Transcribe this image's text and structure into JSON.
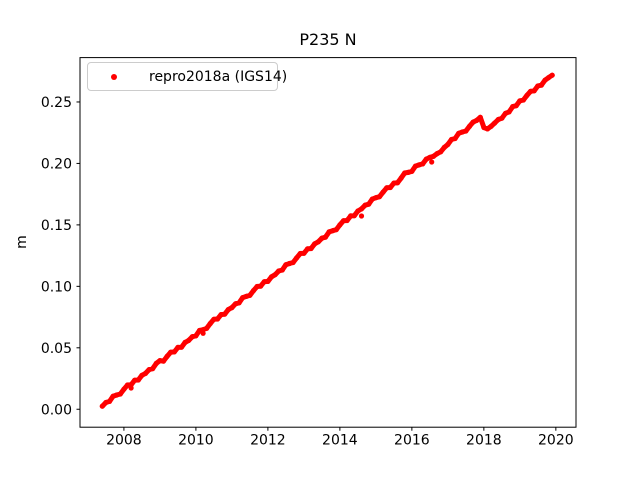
{
  "chart_data": {
    "type": "scatter",
    "title": "P235 N",
    "xlabel": "",
    "ylabel": "m",
    "grid": false,
    "legend": {
      "position": "upper left",
      "entries": [
        {
          "label": "repro2018a (IGS14)",
          "color": "#ff0000",
          "marker": "dot"
        }
      ]
    },
    "xlim": [
      2006.78,
      2020.56
    ],
    "ylim": [
      -0.0146,
      0.2861
    ],
    "xticks": {
      "values": [
        2008,
        2010,
        2012,
        2014,
        2016,
        2018,
        2020
      ],
      "labels": [
        "2008",
        "2010",
        "2012",
        "2014",
        "2016",
        "2018",
        "2020"
      ]
    },
    "yticks": {
      "values": [
        0.0,
        0.05,
        0.1,
        0.15,
        0.2,
        0.25
      ],
      "labels": [
        "0.00",
        "0.05",
        "0.10",
        "0.15",
        "0.20",
        "0.25"
      ]
    },
    "series": [
      {
        "name": "repro2018a (IGS14)",
        "color": "#ff0000",
        "marker": "dot",
        "marker_size_px": 5,
        "points": [
          [
            2007.4,
            0.0025
          ],
          [
            2007.5,
            0.0055
          ],
          [
            2007.6,
            0.0064
          ],
          [
            2007.7,
            0.0106
          ],
          [
            2007.8,
            0.0116
          ],
          [
            2007.9,
            0.0124
          ],
          [
            2008.0,
            0.0163
          ],
          [
            2008.1,
            0.0197
          ],
          [
            2008.2,
            0.0199
          ],
          [
            2008.3,
            0.0236
          ],
          [
            2008.4,
            0.0238
          ],
          [
            2008.5,
            0.0276
          ],
          [
            2008.6,
            0.0292
          ],
          [
            2008.7,
            0.0323
          ],
          [
            2008.8,
            0.0331
          ],
          [
            2008.9,
            0.0373
          ],
          [
            2009.0,
            0.0396
          ],
          [
            2009.1,
            0.0392
          ],
          [
            2009.2,
            0.043
          ],
          [
            2009.3,
            0.0464
          ],
          [
            2009.4,
            0.0467
          ],
          [
            2009.5,
            0.0503
          ],
          [
            2009.6,
            0.0505
          ],
          [
            2009.7,
            0.0544
          ],
          [
            2009.8,
            0.056
          ],
          [
            2009.9,
            0.059
          ],
          [
            2010.0,
            0.0598
          ],
          [
            2010.1,
            0.0641
          ],
          [
            2010.2,
            0.0647
          ],
          [
            2010.3,
            0.0659
          ],
          [
            2010.4,
            0.0698
          ],
          [
            2010.5,
            0.0732
          ],
          [
            2010.6,
            0.0734
          ],
          [
            2010.7,
            0.077
          ],
          [
            2010.8,
            0.0773
          ],
          [
            2010.9,
            0.0811
          ],
          [
            2011.0,
            0.0827
          ],
          [
            2011.1,
            0.0858
          ],
          [
            2011.2,
            0.0866
          ],
          [
            2011.3,
            0.0908
          ],
          [
            2011.4,
            0.0918
          ],
          [
            2011.5,
            0.0927
          ],
          [
            2011.6,
            0.0965
          ],
          [
            2011.7,
            0.0999
          ],
          [
            2011.8,
            0.1002
          ],
          [
            2011.9,
            0.1038
          ],
          [
            2012.0,
            0.104
          ],
          [
            2012.1,
            0.1078
          ],
          [
            2012.2,
            0.1095
          ],
          [
            2012.3,
            0.1125
          ],
          [
            2012.4,
            0.1133
          ],
          [
            2012.5,
            0.1176
          ],
          [
            2012.6,
            0.1186
          ],
          [
            2012.7,
            0.1194
          ],
          [
            2012.8,
            0.1232
          ],
          [
            2012.9,
            0.1267
          ],
          [
            2013.0,
            0.1269
          ],
          [
            2013.1,
            0.1305
          ],
          [
            2013.2,
            0.1308
          ],
          [
            2013.3,
            0.1346
          ],
          [
            2013.4,
            0.1362
          ],
          [
            2013.5,
            0.1392
          ],
          [
            2013.6,
            0.1401
          ],
          [
            2013.7,
            0.1443
          ],
          [
            2013.8,
            0.1453
          ],
          [
            2013.9,
            0.1462
          ],
          [
            2014.0,
            0.15
          ],
          [
            2014.1,
            0.1534
          ],
          [
            2014.2,
            0.1536
          ],
          [
            2014.3,
            0.1573
          ],
          [
            2014.4,
            0.1575
          ],
          [
            2014.5,
            0.1613
          ],
          [
            2014.6,
            0.163
          ],
          [
            2014.7,
            0.166
          ],
          [
            2014.8,
            0.1668
          ],
          [
            2014.9,
            0.171
          ],
          [
            2015.0,
            0.1721
          ],
          [
            2015.1,
            0.1729
          ],
          [
            2015.2,
            0.1767
          ],
          [
            2015.3,
            0.1802
          ],
          [
            2015.4,
            0.1804
          ],
          [
            2015.5,
            0.184
          ],
          [
            2015.6,
            0.1842
          ],
          [
            2015.7,
            0.1881
          ],
          [
            2015.8,
            0.1922
          ],
          [
            2015.9,
            0.1927
          ],
          [
            2016.0,
            0.1936
          ],
          [
            2016.1,
            0.1978
          ],
          [
            2016.2,
            0.1988
          ],
          [
            2016.3,
            0.1996
          ],
          [
            2016.4,
            0.2035
          ],
          [
            2016.5,
            0.2049
          ],
          [
            2016.6,
            0.2058
          ],
          [
            2016.7,
            0.208
          ],
          [
            2016.8,
            0.2095
          ],
          [
            2016.9,
            0.213
          ],
          [
            2017.0,
            0.2155
          ],
          [
            2017.1,
            0.2195
          ],
          [
            2017.2,
            0.2203
          ],
          [
            2017.3,
            0.2245
          ],
          [
            2017.4,
            0.2256
          ],
          [
            2017.5,
            0.2264
          ],
          [
            2017.6,
            0.2302
          ],
          [
            2017.7,
            0.2336
          ],
          [
            2017.8,
            0.235
          ],
          [
            2017.9,
            0.2375
          ],
          [
            2018.0,
            0.2292
          ],
          [
            2018.1,
            0.2281
          ],
          [
            2018.2,
            0.2302
          ],
          [
            2018.3,
            0.2329
          ],
          [
            2018.4,
            0.2357
          ],
          [
            2018.5,
            0.2368
          ],
          [
            2018.6,
            0.2408
          ],
          [
            2018.7,
            0.2419
          ],
          [
            2018.8,
            0.2462
          ],
          [
            2018.9,
            0.247
          ],
          [
            2019.0,
            0.2509
          ],
          [
            2019.1,
            0.2516
          ],
          [
            2019.2,
            0.2554
          ],
          [
            2019.3,
            0.2587
          ],
          [
            2019.4,
            0.2591
          ],
          [
            2019.5,
            0.263
          ],
          [
            2019.6,
            0.2637
          ],
          [
            2019.7,
            0.2677
          ],
          [
            2019.8,
            0.2698
          ],
          [
            2019.9,
            0.2718
          ]
        ],
        "low_outlier_points": [
          [
            2008.2,
            0.0173
          ],
          [
            2010.2,
            0.0618
          ],
          [
            2014.6,
            0.1572
          ],
          [
            2016.55,
            0.2012
          ]
        ]
      }
    ],
    "annotations": {
      "offset_event": "small downward step in series near 2018.0 (from ~0.238 to ~0.228)"
    },
    "axis_color": "#000000",
    "background_color": "#ffffff"
  }
}
